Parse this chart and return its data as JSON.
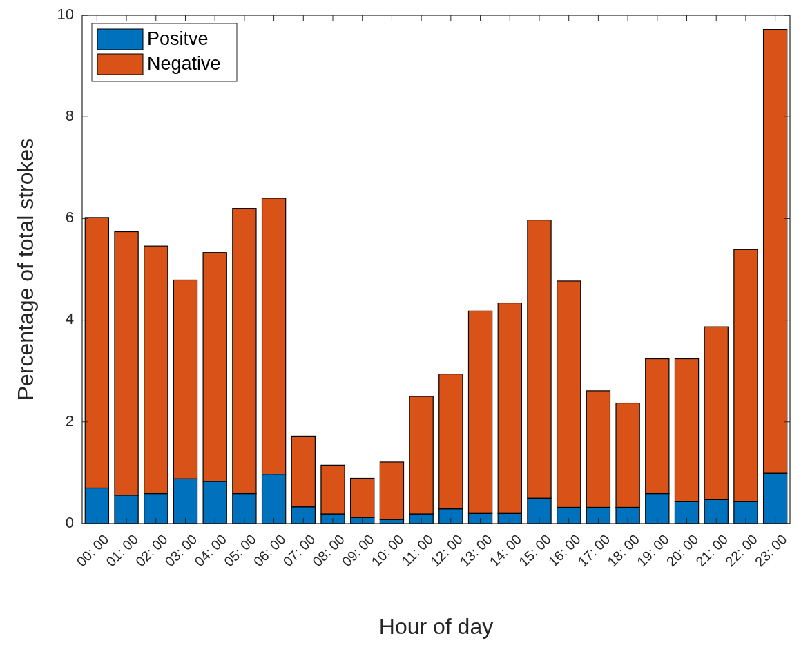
{
  "chart_data": {
    "type": "bar",
    "stacked": true,
    "xlabel": "Hour of day",
    "ylabel": "Percentage of total strokes",
    "categories": [
      "00: 00",
      "01: 00",
      "02: 00",
      "03: 00",
      "04: 00",
      "05: 00",
      "06: 00",
      "07: 00",
      "08: 00",
      "09: 00",
      "10: 00",
      "11: 00",
      "12: 00",
      "13: 00",
      "14: 00",
      "15: 00",
      "16: 00",
      "17: 00",
      "18: 00",
      "19: 00",
      "20: 00",
      "21: 00",
      "22: 00",
      "23: 00"
    ],
    "series": [
      {
        "name": "Positve",
        "color": "#0072bd",
        "values": [
          0.7,
          0.56,
          0.59,
          0.88,
          0.83,
          0.59,
          0.97,
          0.33,
          0.19,
          0.12,
          0.08,
          0.19,
          0.29,
          0.2,
          0.2,
          0.5,
          0.32,
          0.32,
          0.32,
          0.59,
          0.43,
          0.47,
          0.43,
          0.99
        ]
      },
      {
        "name": "Negative",
        "color": "#d95319",
        "values": [
          5.32,
          5.18,
          4.87,
          3.91,
          4.5,
          5.61,
          5.43,
          1.39,
          0.96,
          0.77,
          1.13,
          2.31,
          2.65,
          3.98,
          4.14,
          5.47,
          4.45,
          2.29,
          2.05,
          2.65,
          2.81,
          3.4,
          4.96,
          8.73
        ]
      }
    ],
    "ylim": [
      0,
      10
    ],
    "yticks": [
      0,
      2,
      4,
      6,
      8,
      10
    ],
    "legend": "top left"
  }
}
